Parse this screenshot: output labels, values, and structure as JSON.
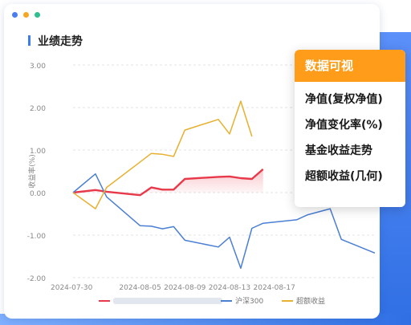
{
  "window": {
    "section_title": "业绩走势"
  },
  "popup": {
    "title": "数据可视",
    "items": [
      "净值(复权净值)",
      "净值变化率(%)",
      "基金收益走势",
      "超额收益(几何)"
    ]
  },
  "colors": {
    "fund": "#e8394a",
    "index": "#4a7fd4",
    "excess": "#e7b02e"
  },
  "chart_data": {
    "type": "line",
    "ylabel": "收益率(%)",
    "ylim": [
      -2.0,
      3.0
    ],
    "yticks": [
      "3.00",
      "2.00",
      "1.00",
      "0.00",
      "-1.00",
      "-2.00"
    ],
    "ytick_values": [
      3,
      2,
      1,
      0,
      -1,
      -2
    ],
    "xticks": [
      "2024-07-30",
      "2024-08-05",
      "2024-08-09",
      "2024-08-13",
      "2024-08-17"
    ],
    "x": [
      "2024-07-30",
      "2024-08-01",
      "2024-08-02",
      "2024-08-05",
      "2024-08-06",
      "2024-08-07",
      "2024-08-08",
      "2024-08-09",
      "2024-08-12",
      "2024-08-13",
      "2024-08-14",
      "2024-08-15",
      "2024-08-16",
      "2024-08-19",
      "2024-08-20",
      "2024-08-21",
      "2024-08-22",
      "2024-08-23",
      "2024-08-26"
    ],
    "series": [
      {
        "name": "",
        "color_key": "fund",
        "area": true,
        "values": [
          0.0,
          0.06,
          0.02,
          -0.06,
          0.12,
          0.07,
          0.07,
          0.32,
          0.37,
          0.38,
          0.34,
          0.32,
          0.55,
          null,
          null,
          null,
          null,
          null,
          null
        ]
      },
      {
        "name": "沪深300",
        "color_key": "index",
        "area": false,
        "values": [
          0.0,
          0.44,
          -0.1,
          -0.78,
          -0.79,
          -0.85,
          -0.8,
          -1.12,
          -1.28,
          -1.05,
          -1.78,
          -0.84,
          -0.72,
          -0.64,
          -0.52,
          -0.45,
          -0.38,
          -1.1,
          -1.42
        ]
      },
      {
        "name": "超额收益",
        "color_key": "excess",
        "area": false,
        "values": [
          0.0,
          -0.38,
          0.12,
          0.72,
          0.92,
          0.9,
          0.85,
          1.47,
          1.72,
          1.38,
          2.15,
          1.32,
          null,
          null,
          null,
          null,
          null,
          null,
          null
        ]
      }
    ],
    "legend": [
      "沪深300",
      "超额收益"
    ]
  }
}
